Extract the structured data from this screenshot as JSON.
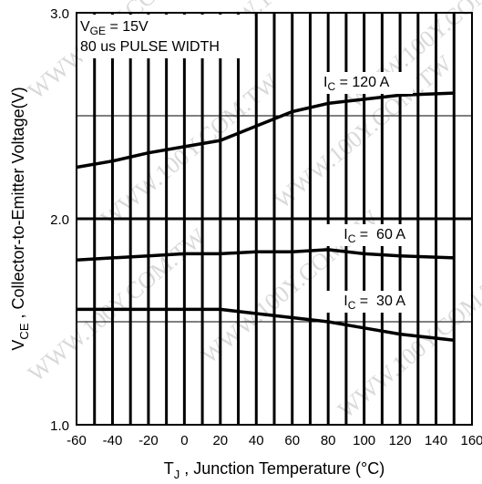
{
  "chart_data": {
    "type": "line",
    "xlabel_main": "T",
    "xlabel_sub": "J",
    "xlabel_rest": " , Junction Temperature (°C)",
    "ylabel_main": "V",
    "ylabel_sub": "CE",
    "ylabel_rest": " , Collector-to-Emitter Voltage(V)",
    "xlim": [
      -60,
      160
    ],
    "ylim": [
      1.0,
      3.0
    ],
    "x_ticks": [
      "-60",
      "-40",
      "-20",
      "0",
      "20",
      "40",
      "60",
      "80",
      "100",
      "120",
      "140",
      "160"
    ],
    "y_ticks": [
      "1.0",
      "2.0",
      "3.0"
    ],
    "annotation": {
      "line1_main": "V",
      "line1_sub": "GE",
      "line1_rest": " = 15V",
      "line2": "80 us PULSE WIDTH"
    },
    "series": [
      {
        "name_main": "I",
        "name_sub": "C",
        "name_rest": " = 120 A",
        "x": [
          -60,
          -40,
          -20,
          0,
          20,
          40,
          60,
          80,
          100,
          120,
          150
        ],
        "y": [
          2.25,
          2.28,
          2.32,
          2.35,
          2.38,
          2.45,
          2.52,
          2.56,
          2.58,
          2.6,
          2.61
        ]
      },
      {
        "name_main": "I",
        "name_sub": "C",
        "name_rest": " =  60 A",
        "x": [
          -60,
          -40,
          -20,
          0,
          20,
          40,
          60,
          80,
          100,
          120,
          150
        ],
        "y": [
          1.8,
          1.81,
          1.82,
          1.83,
          1.83,
          1.84,
          1.84,
          1.85,
          1.83,
          1.82,
          1.81
        ]
      },
      {
        "name_main": "I",
        "name_sub": "C",
        "name_rest": " =  30 A",
        "x": [
          -60,
          -40,
          -20,
          0,
          20,
          40,
          60,
          80,
          100,
          120,
          150
        ],
        "y": [
          1.56,
          1.56,
          1.56,
          1.56,
          1.56,
          1.54,
          1.52,
          1.5,
          1.47,
          1.44,
          1.41
        ]
      }
    ],
    "watermark": "WWW.100Y.COM.TW",
    "colors": {
      "line": "#000000",
      "grid": "#000000",
      "background": "#ffffff",
      "watermark": "#d9d9d9"
    }
  }
}
